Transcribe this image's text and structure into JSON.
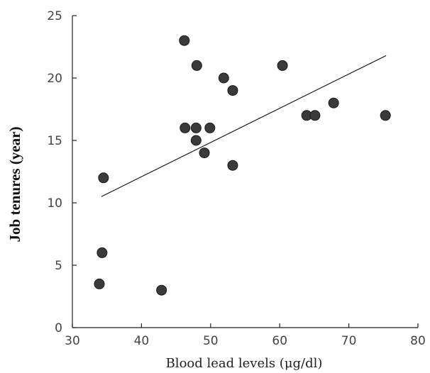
{
  "chart_data": {
    "type": "scatter",
    "title": "",
    "xlabel": "Blood lead levels (μg/dl)",
    "ylabel": "Job tenures (year)",
    "xlim": [
      30,
      80
    ],
    "ylim": [
      0,
      25
    ],
    "x_ticks": [
      30,
      40,
      50,
      60,
      70,
      80
    ],
    "y_ticks": [
      0,
      5,
      10,
      15,
      20,
      25
    ],
    "grid": false,
    "legend": "none",
    "marker_color": "#3a3a3a",
    "series": [
      {
        "points": [
          {
            "x": 46.2,
            "y": 23
          },
          {
            "x": 48.0,
            "y": 21
          },
          {
            "x": 51.9,
            "y": 20
          },
          {
            "x": 60.4,
            "y": 21
          },
          {
            "x": 53.2,
            "y": 19
          },
          {
            "x": 67.8,
            "y": 18
          },
          {
            "x": 46.3,
            "y": 16
          },
          {
            "x": 47.9,
            "y": 16
          },
          {
            "x": 49.9,
            "y": 16
          },
          {
            "x": 63.9,
            "y": 17
          },
          {
            "x": 65.1,
            "y": 17
          },
          {
            "x": 75.3,
            "y": 17
          },
          {
            "x": 47.9,
            "y": 15
          },
          {
            "x": 49.1,
            "y": 14
          },
          {
            "x": 53.2,
            "y": 13
          },
          {
            "x": 34.5,
            "y": 12
          },
          {
            "x": 34.3,
            "y": 6
          },
          {
            "x": 33.9,
            "y": 3.5
          },
          {
            "x": 42.9,
            "y": 3
          }
        ]
      }
    ],
    "trendline": {
      "x": [
        34.2,
        75.4
      ],
      "y": [
        10.5,
        21.8
      ]
    }
  }
}
